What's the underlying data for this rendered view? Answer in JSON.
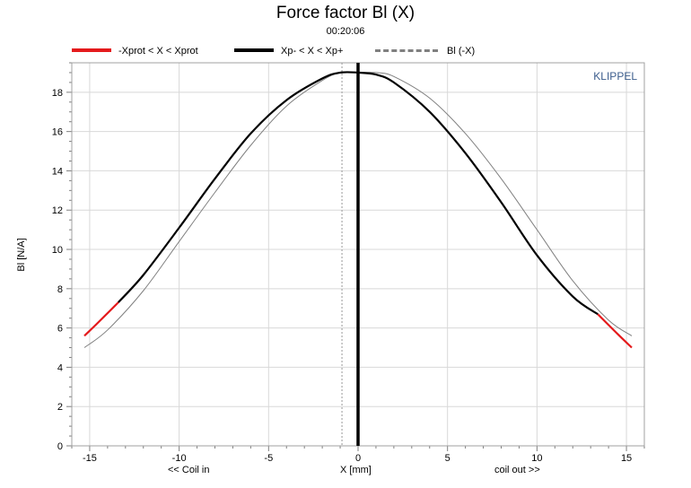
{
  "chart_data": {
    "type": "line",
    "title": "Force factor Bl (X)",
    "subtitle": "00:20:06",
    "brand": "KLIPPEL",
    "xlabel": "X [mm]",
    "xlabel_left": "<< Coil in",
    "xlabel_right": "coil out >>",
    "ylabel": "Bl [N/A]",
    "xlim": [
      -16,
      16
    ],
    "ylim": [
      0,
      19.5
    ],
    "xticks": [
      -15,
      -10,
      -5,
      0,
      5,
      10,
      15
    ],
    "yticks": [
      0,
      2,
      4,
      6,
      8,
      10,
      12,
      14,
      16,
      18
    ],
    "grid": true,
    "legend_position": "top",
    "legend": [
      {
        "label": "-Xprot < X < Xprot",
        "color": "#e41a1c",
        "style": "solid-thick"
      },
      {
        "label": "Xp- < X < Xp+",
        "color": "#000000",
        "style": "solid-thick"
      },
      {
        "label": "Bl (-X)",
        "color": "#808080",
        "style": "dashed"
      }
    ],
    "series": [
      {
        "name": "Xp- < X < Xp+",
        "color": "#000000",
        "x": [
          -13.4,
          -12,
          -10,
          -8,
          -6,
          -4,
          -2,
          -1,
          0,
          1,
          2,
          4,
          6,
          8,
          10,
          12,
          13.4
        ],
        "y": [
          7.3,
          8.7,
          11.1,
          13.6,
          15.9,
          17.6,
          18.7,
          19.0,
          19.0,
          18.9,
          18.5,
          17.0,
          14.9,
          12.4,
          9.7,
          7.6,
          6.7
        ]
      },
      {
        "name": "-Xprot < X < Xprot",
        "color": "#e41a1c",
        "segments": [
          {
            "x": [
              -15.3,
              -14.5,
              -13.4
            ],
            "y": [
              5.6,
              6.3,
              7.3
            ]
          },
          {
            "x": [
              13.4,
              14.5,
              15.3
            ],
            "y": [
              6.7,
              5.7,
              5.0
            ]
          }
        ]
      },
      {
        "name": "Bl (-X)",
        "color": "#808080",
        "x": [
          -15.3,
          -14,
          -12,
          -10,
          -8,
          -6,
          -4,
          -2,
          -1,
          0,
          1,
          2,
          4,
          6,
          8,
          10,
          12,
          14,
          15.3
        ],
        "y": [
          5.0,
          5.9,
          7.9,
          10.4,
          12.9,
          15.3,
          17.3,
          18.6,
          19.0,
          19.0,
          19.0,
          18.8,
          17.7,
          15.9,
          13.6,
          11.0,
          8.4,
          6.4,
          5.6
        ]
      }
    ],
    "vertical_lines": [
      {
        "x": 0,
        "color": "#000000",
        "style": "solid"
      },
      {
        "x": -0.9,
        "color": "#999999",
        "style": "dotted"
      }
    ]
  }
}
